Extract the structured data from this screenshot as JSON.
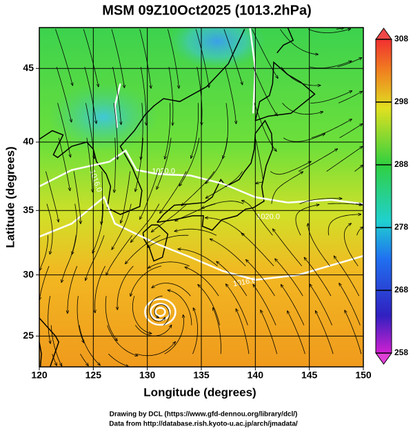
{
  "chart_data": {
    "type": "map",
    "title": "MSM 09Z10Oct2025 (1013.2hPa)",
    "xlabel": "Longitude (degrees)",
    "ylabel": "Latitude  (degrees)",
    "projection": "mercator",
    "xlim": [
      120,
      150
    ],
    "ylim": [
      22.4,
      47.6
    ],
    "xticks": [
      120,
      125,
      130,
      135,
      140,
      145,
      150
    ],
    "yticks": [
      25,
      30,
      35,
      40,
      45
    ],
    "grid": true,
    "contour_labels": [
      "1020.0",
      "1016.0",
      "1020.0",
      "1016.0"
    ],
    "colorbar": {
      "lim": [
        258,
        308
      ],
      "ticks": [
        258,
        268,
        278,
        288,
        298,
        308
      ]
    },
    "footer": [
      "Drawing by DCL (https://www.gfd-dennou.org/library/dcl/)",
      "Data from http://database.rish.kyoto-u.ac.jp/arch/jmadata/"
    ]
  }
}
